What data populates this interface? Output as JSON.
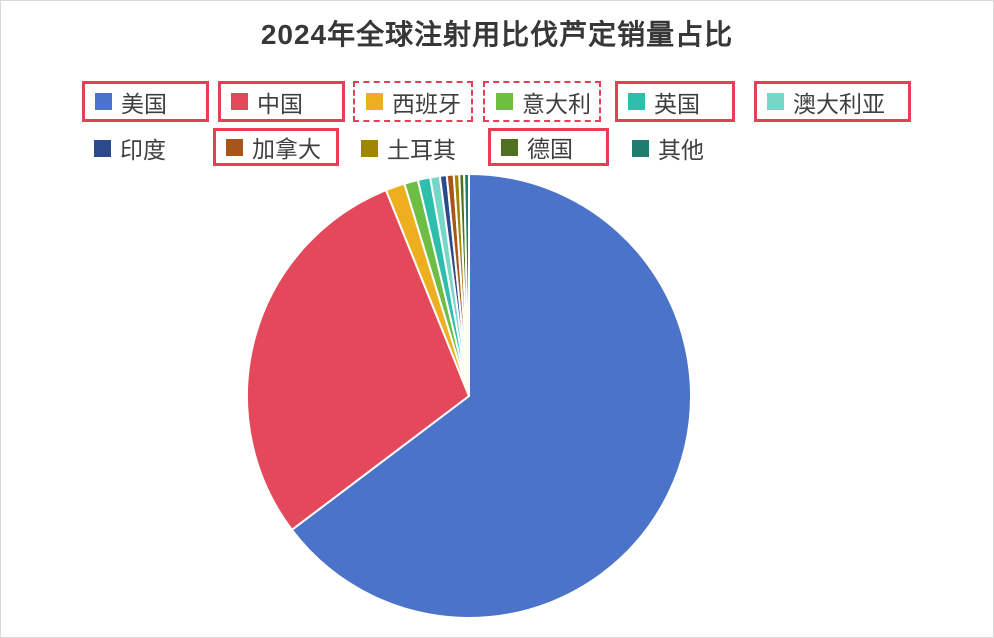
{
  "title": "2024年全球注射用比伐芦定销量占比",
  "chart_data": {
    "type": "pie",
    "categories": [
      "美国",
      "中国",
      "西班牙",
      "意大利",
      "英国",
      "澳大利亚",
      "印度",
      "加拿大",
      "土耳其",
      "德国",
      "其他"
    ],
    "keys": [
      "usa",
      "china",
      "spain",
      "italy",
      "uk",
      "australia",
      "india",
      "canada",
      "turkey",
      "germany",
      "other"
    ],
    "values": [
      64.7,
      29.2,
      1.4,
      1.0,
      0.9,
      0.7,
      0.5,
      0.5,
      0.4,
      0.35,
      0.35
    ],
    "unit": "percent-share",
    "colors": [
      "#4A73C9",
      "#E4495B",
      "#EDAF1F",
      "#6FBE44",
      "#2EBFAC",
      "#76D6C8",
      "#2A4A8B",
      "#A8551A",
      "#A08500",
      "#4E7020",
      "#1F7D6F"
    ],
    "start_angle_deg": 0,
    "direction": "clockwise",
    "slice_border_color": "#FFFFFF",
    "legend_position": "top",
    "legend_rows": 2,
    "data_labels": "none"
  },
  "legend": {
    "items": [
      {
        "label": "美国",
        "highlight": "solid"
      },
      {
        "label": "中国",
        "highlight": "solid"
      },
      {
        "label": "西班牙",
        "highlight": "dashed"
      },
      {
        "label": "意大利",
        "highlight": "dashed"
      },
      {
        "label": "英国",
        "highlight": "solid"
      },
      {
        "label": "澳大利亚",
        "highlight": "solid"
      },
      {
        "label": "印度",
        "highlight": "none"
      },
      {
        "label": "加拿大",
        "highlight": "solid"
      },
      {
        "label": "土耳其",
        "highlight": "none"
      },
      {
        "label": "德国",
        "highlight": "solid"
      },
      {
        "label": "其他",
        "highlight": "none"
      }
    ],
    "highlight_box_color": "#E83E53"
  },
  "colors": {
    "title_text": "#373737",
    "legend_text": "#3F3F3F",
    "background": "#FFFFFF",
    "page_border": "#D9D9D9"
  }
}
